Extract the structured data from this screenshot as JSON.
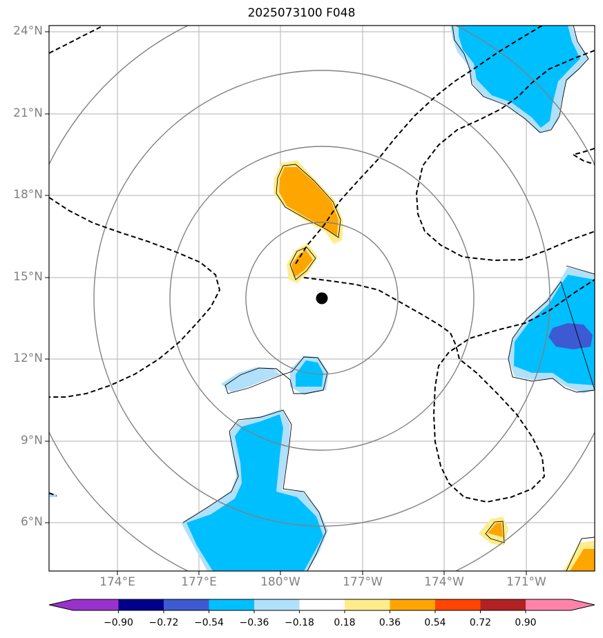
{
  "title": "2025073100 F048",
  "map": {
    "lon_labels": [
      "174°E",
      "177°E",
      "180°W",
      "177°W",
      "174°W",
      "171°W"
    ],
    "lat_labels": [
      "24°N",
      "21°N",
      "18°N",
      "15°N",
      "12°N",
      "9°N",
      "6°N"
    ],
    "center_marker": {
      "lat": 14.2,
      "lon": -178.5
    },
    "range_rings_count": 4,
    "gridlines": true
  },
  "colorbar": {
    "ticks": [
      "−0.90",
      "−0.72",
      "−0.54",
      "−0.36",
      "−0.18",
      "0.18",
      "0.36",
      "0.54",
      "0.72",
      "0.90"
    ],
    "colors": [
      "#9932cc",
      "#00008b",
      "#3d5ad2",
      "#00bfff",
      "#b0e0fa",
      "#ffffff",
      "#ffec8b",
      "#ffa500",
      "#ff4500",
      "#b22222",
      "#ff83ab"
    ],
    "extend": "both"
  }
}
